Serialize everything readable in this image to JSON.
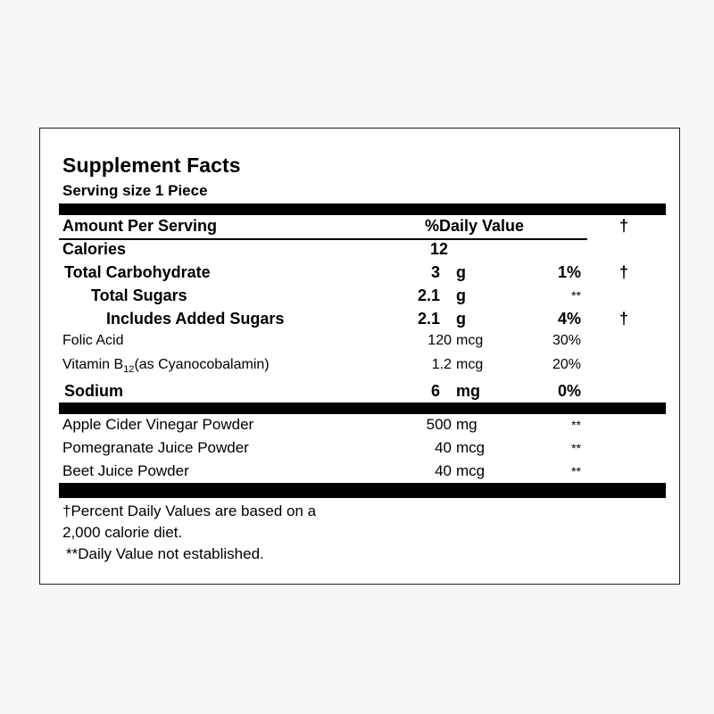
{
  "title": "Supplement Facts",
  "serving_size": "Serving size 1 Piece",
  "header": {
    "amount": "Amount Per Serving",
    "dv": "%Daily Value",
    "dagger": "†"
  },
  "nutrients": [
    {
      "name": "Calories",
      "qty": "12",
      "unit": "",
      "dv": "",
      "mark": ""
    },
    {
      "name": "Total Carbohydrate",
      "qty": "3",
      "unit": "g",
      "dv": "1%",
      "mark": "†"
    },
    {
      "name": "Total Sugars",
      "qty": "2.1",
      "unit": "g",
      "dv": "**",
      "mark": ""
    },
    {
      "name": "Includes Added Sugars",
      "qty": "2.1",
      "unit": "g",
      "dv": "4%",
      "mark": "†"
    },
    {
      "name": "Folic Acid",
      "qty": "120",
      "unit": "mcg",
      "dv": "30%",
      "mark": ""
    },
    {
      "name_prefix": "Vitamin B",
      "name_sub": "12",
      "name_suffix": "(as Cyanocobalamin)",
      "qty": "1.2",
      "unit": "mcg",
      "dv": "20%",
      "mark": ""
    },
    {
      "name": "Sodium",
      "qty": "6",
      "unit": "mg",
      "dv": "0%",
      "mark": ""
    }
  ],
  "other_ingredients": [
    {
      "name": "Apple Cider Vinegar Powder",
      "qty": "500",
      "unit": "mg",
      "dv": "**"
    },
    {
      "name": "Pomegranate Juice Powder",
      "qty": "40",
      "unit": "mcg",
      "dv": "**"
    },
    {
      "name": "Beet Juice Powder",
      "qty": "40",
      "unit": "mcg",
      "dv": "**"
    }
  ],
  "footnotes": {
    "line1": "†Percent Daily Values are based on a",
    "line2": "2,000 calorie diet.",
    "line3": "**Daily Value not established."
  }
}
